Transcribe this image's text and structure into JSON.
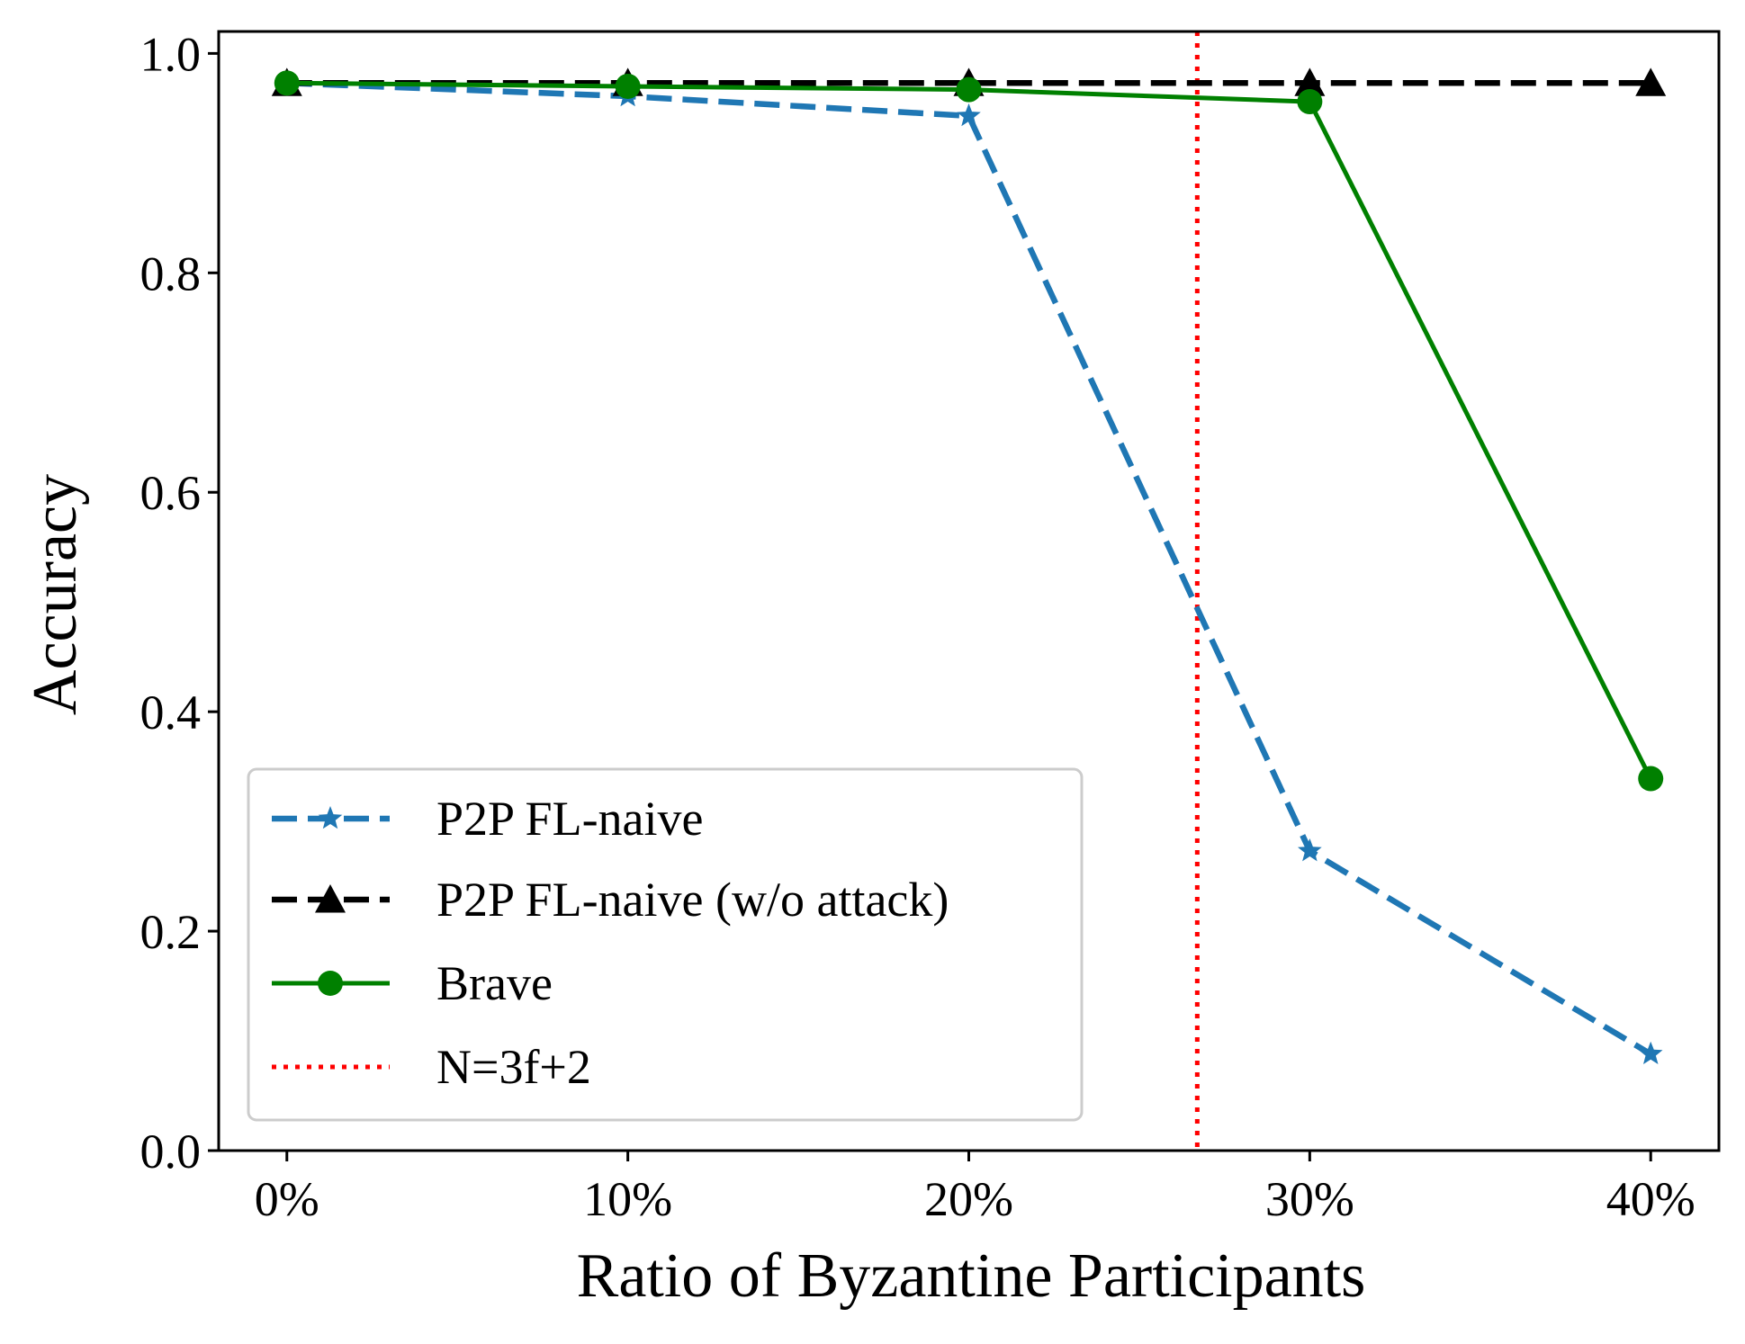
{
  "chart_data": {
    "type": "line",
    "title": "",
    "xlabel": "Ratio of Byzantine Participants",
    "ylabel": "Accuracy",
    "x": [
      0,
      10,
      20,
      30,
      40
    ],
    "x_tick_labels": [
      "0%",
      "10%",
      "20%",
      "30%",
      "40%"
    ],
    "xlim": [
      -2,
      42
    ],
    "y_ticks": [
      0.0,
      0.2,
      0.4,
      0.6,
      0.8,
      1.0
    ],
    "y_tick_labels": [
      "0.0",
      "0.2",
      "0.4",
      "0.6",
      "0.8",
      "1.0"
    ],
    "ylim": [
      0,
      1.02
    ],
    "grid": false,
    "legend_position": "lower-left",
    "series": [
      {
        "name": "P2P FL-naive",
        "values": [
          0.973,
          0.961,
          0.943,
          0.273,
          0.088
        ],
        "color": "#1f77b4",
        "line_style": "dashed",
        "marker": "star"
      },
      {
        "name": "P2P FL-naive (w/o attack)",
        "values": [
          0.973,
          0.973,
          0.973,
          0.973,
          0.973
        ],
        "color": "#000000",
        "line_style": "dashed",
        "marker": "triangle"
      },
      {
        "name": "Brave",
        "values": [
          0.973,
          0.97,
          0.967,
          0.956,
          0.339
        ],
        "color": "#008000",
        "line_style": "solid",
        "marker": "circle"
      }
    ],
    "reference_lines": [
      {
        "name": "N=3f+2",
        "orientation": "vertical",
        "x": 26.7,
        "color": "#ff0000",
        "line_style": "dotted"
      }
    ]
  }
}
